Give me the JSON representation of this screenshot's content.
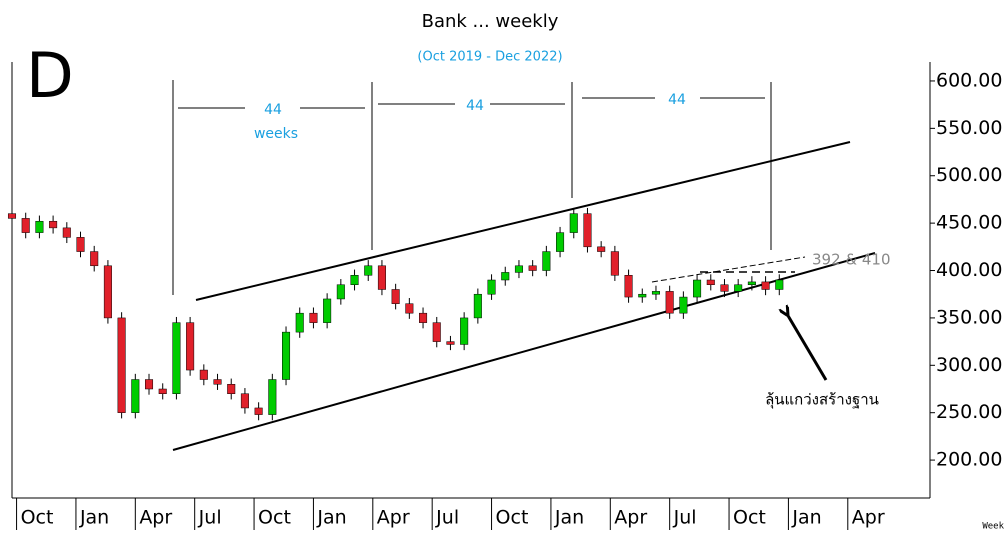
{
  "chart_data": {
    "type": "candlestick",
    "title": "Bank ... weekly",
    "subtitle": "(Oct 2019 - Dec 2022)",
    "panel_label": "D",
    "annotations": {
      "span_1": "44",
      "span_1_unit": "weeks",
      "span_2": "44",
      "span_3": "44",
      "levels": "392 & 410",
      "note": "ลุ้นแกว่งสร้างฐาน",
      "interval": "Week"
    },
    "up_color": "#00cc00",
    "down_color": "#e0202a",
    "x": [
      0,
      3,
      6,
      9,
      12,
      15,
      18,
      21,
      24,
      27,
      30,
      33,
      36,
      39,
      42,
      45,
      48,
      51,
      54,
      57,
      60,
      63,
      66,
      69,
      72,
      75,
      78,
      81,
      84,
      87,
      90,
      93,
      96,
      99,
      102,
      105,
      108,
      111,
      114,
      117,
      120,
      123,
      126,
      129,
      132,
      135,
      138,
      141,
      144,
      147,
      150,
      153,
      156,
      159,
      162,
      165,
      168
    ],
    "open": [
      460,
      455,
      440,
      452,
      445,
      435,
      420,
      405,
      350,
      250,
      285,
      275,
      270,
      345,
      295,
      285,
      280,
      270,
      255,
      248,
      285,
      335,
      355,
      345,
      370,
      385,
      395,
      405,
      380,
      365,
      355,
      345,
      325,
      322,
      350,
      375,
      390,
      398,
      405,
      400,
      420,
      440,
      460,
      425,
      420,
      395,
      372,
      375,
      378,
      355,
      372,
      390,
      385,
      378,
      385,
      388,
      380
    ],
    "high": [
      466,
      461,
      458,
      458,
      451,
      441,
      426,
      411,
      356,
      291,
      291,
      281,
      351,
      351,
      301,
      291,
      286,
      276,
      261,
      291,
      341,
      361,
      361,
      376,
      391,
      401,
      411,
      411,
      386,
      371,
      361,
      351,
      331,
      356,
      381,
      396,
      404,
      411,
      411,
      426,
      446,
      466,
      466,
      431,
      426,
      401,
      381,
      384,
      384,
      378,
      396,
      396,
      391,
      391,
      394,
      394,
      396
    ],
    "low": [
      449,
      434,
      434,
      439,
      429,
      414,
      399,
      344,
      244,
      244,
      269,
      264,
      264,
      289,
      279,
      274,
      264,
      249,
      242,
      242,
      279,
      329,
      339,
      339,
      364,
      379,
      389,
      374,
      359,
      349,
      339,
      319,
      316,
      316,
      344,
      369,
      384,
      392,
      394,
      394,
      414,
      434,
      419,
      414,
      389,
      366,
      366,
      369,
      349,
      349,
      366,
      379,
      372,
      372,
      379,
      374,
      374
    ],
    "close": [
      455,
      440,
      452,
      445,
      435,
      420,
      405,
      350,
      250,
      285,
      275,
      270,
      345,
      295,
      285,
      280,
      270,
      255,
      248,
      285,
      335,
      355,
      345,
      370,
      385,
      395,
      405,
      380,
      365,
      355,
      345,
      325,
      322,
      350,
      375,
      390,
      398,
      405,
      400,
      420,
      440,
      460,
      425,
      420,
      395,
      372,
      375,
      378,
      355,
      372,
      390,
      385,
      378,
      385,
      388,
      380,
      390
    ],
    "xlim": [
      0,
      201
    ],
    "xticks": [
      {
        "value": 1,
        "label": "Oct"
      },
      {
        "value": 14,
        "label": "Jan"
      },
      {
        "value": 27,
        "label": "Apr"
      },
      {
        "value": 40,
        "label": "Jul"
      },
      {
        "value": 53,
        "label": "Oct"
      },
      {
        "value": 66,
        "label": "Jan"
      },
      {
        "value": 79,
        "label": "Apr"
      },
      {
        "value": 92,
        "label": "Jul"
      },
      {
        "value": 105,
        "label": "Oct"
      },
      {
        "value": 118,
        "label": "Jan"
      },
      {
        "value": 131,
        "label": "Apr"
      },
      {
        "value": 144,
        "label": "Jul"
      },
      {
        "value": 157,
        "label": "Oct"
      },
      {
        "value": 170,
        "label": "Jan"
      },
      {
        "value": 183,
        "label": "Apr"
      }
    ],
    "ylim": [
      160,
      620
    ],
    "yticks": [
      {
        "value": 200,
        "label": "200.00"
      },
      {
        "value": 250,
        "label": "250.00"
      },
      {
        "value": 300,
        "label": "300.00"
      },
      {
        "value": 350,
        "label": "350.00"
      },
      {
        "value": 400,
        "label": "400.00"
      },
      {
        "value": 450,
        "label": "450.00"
      },
      {
        "value": 500,
        "label": "500.00"
      },
      {
        "value": 550,
        "label": "550.00"
      },
      {
        "value": 600,
        "label": "600.00"
      }
    ],
    "y_axis_side": "right"
  }
}
